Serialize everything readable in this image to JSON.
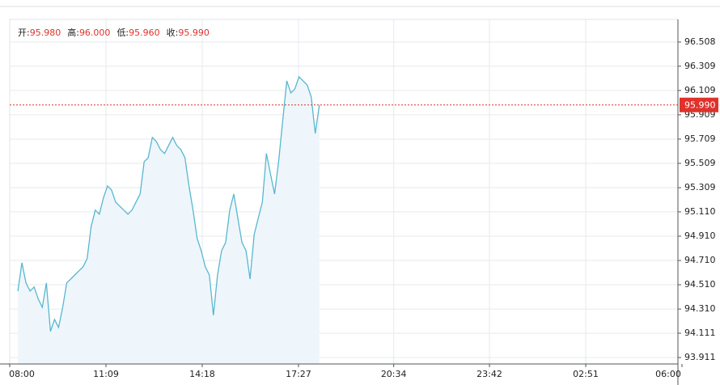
{
  "chart_data": {
    "type": "line",
    "ohlc": [
      {
        "label": "开:",
        "value": "95.980"
      },
      {
        "label": "高:",
        "value": "96.000"
      },
      {
        "label": "低:",
        "value": "95.960"
      },
      {
        "label": "收:",
        "value": "95.990"
      }
    ],
    "x": [
      "08:16",
      "08:24",
      "08:32",
      "08:40",
      "08:48",
      "08:56",
      "09:04",
      "09:12",
      "09:20",
      "09:28",
      "09:36",
      "09:44",
      "09:52",
      "10:00",
      "10:08",
      "10:16",
      "10:24",
      "10:32",
      "10:40",
      "10:48",
      "10:56",
      "11:04",
      "11:12",
      "11:20",
      "11:28",
      "11:36",
      "11:44",
      "11:52",
      "12:00",
      "12:08",
      "12:16",
      "12:24",
      "12:32",
      "12:40",
      "12:48",
      "12:56",
      "13:04",
      "13:12",
      "13:20",
      "13:28",
      "13:36",
      "13:44",
      "13:52",
      "14:00",
      "14:08",
      "14:16",
      "14:24",
      "14:32",
      "14:40",
      "14:48",
      "14:56",
      "15:04",
      "15:12",
      "15:20",
      "15:28",
      "15:36",
      "15:44",
      "15:52",
      "16:00",
      "16:08",
      "16:16",
      "16:24",
      "16:32",
      "16:40",
      "16:48",
      "16:56",
      "17:04",
      "17:12",
      "17:20",
      "17:28",
      "17:36",
      "17:44",
      "17:52",
      "18:00",
      "18:08"
    ],
    "series": [
      {
        "color": "#58b7d0",
        "values": [
          94.458,
          94.691,
          94.525,
          94.458,
          94.492,
          94.392,
          94.325,
          94.525,
          94.126,
          94.225,
          94.159,
          94.325,
          94.525,
          94.558,
          94.591,
          94.625,
          94.658,
          94.725,
          94.991,
          95.124,
          95.091,
          95.224,
          95.323,
          95.29,
          95.19,
          95.157,
          95.124,
          95.091,
          95.124,
          95.19,
          95.257,
          95.523,
          95.556,
          95.723,
          95.689,
          95.623,
          95.59,
          95.656,
          95.723,
          95.656,
          95.623,
          95.556,
          95.323,
          95.124,
          94.891,
          94.791,
          94.658,
          94.591,
          94.259,
          94.591,
          94.791,
          94.858,
          95.124,
          95.257,
          95.057,
          94.858,
          94.791,
          94.558,
          94.924,
          95.057,
          95.19,
          95.59,
          95.423,
          95.257,
          95.523,
          95.856,
          96.189,
          96.089,
          96.122,
          96.222,
          96.189,
          96.155,
          96.056,
          95.756,
          95.989
        ]
      }
    ],
    "last": {
      "value": 95.99,
      "label": "95.990",
      "color": "#e0312b"
    },
    "xlim": [
      "08:00",
      "06:00"
    ],
    "xticks": [
      "08:00",
      "11:09",
      "14:18",
      "17:27",
      "20:34",
      "23:42",
      "02:51",
      "06:00"
    ],
    "ylim": [
      93.858,
      96.694
    ],
    "yticks": [
      96.508,
      96.309,
      96.109,
      95.909,
      95.709,
      95.509,
      95.309,
      {
        "value": 95.11,
        "label": "95.110"
      },
      {
        "value": 94.91,
        "label": "94.910"
      },
      {
        "value": 94.71,
        "label": "94.710"
      },
      {
        "value": 94.51,
        "label": "94.510"
      },
      {
        "value": 94.31,
        "label": "94.310"
      },
      94.111,
      93.911
    ],
    "grid": true
  }
}
